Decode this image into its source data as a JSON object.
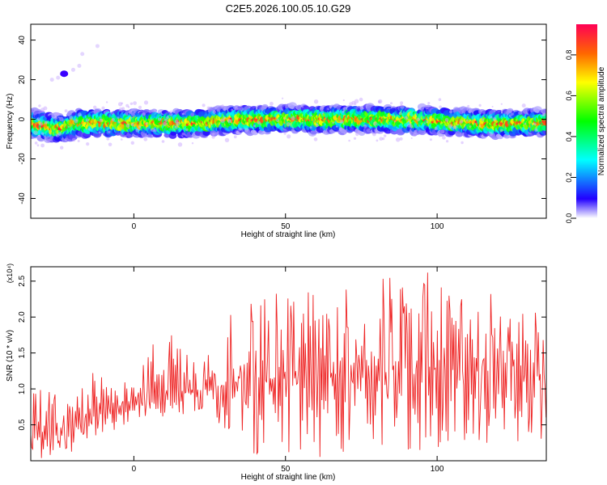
{
  "figure_title": "C2E5.2026.100.05.10.G29",
  "chart_data": [
    {
      "type": "heatmap",
      "title": "C2E5.2026.100.05.10.G29",
      "xlabel": "Height of straight line (km)",
      "ylabel": "Frequency (Hz)",
      "xlim": [
        -34,
        136
      ],
      "ylim": [
        -50,
        48
      ],
      "x_ticks": [
        0,
        50,
        100
      ],
      "y_ticks": [
        -40,
        -20,
        0,
        20,
        40
      ],
      "colorbar": {
        "label": "Normalized spectral amplitude",
        "range": [
          0.0,
          0.95
        ],
        "ticks": [
          0.0,
          0.2,
          0.4,
          0.6,
          0.8
        ],
        "colormap": [
          "#ffffff",
          "#2200ff",
          "#00ffff",
          "#00ff00",
          "#ffff00",
          "#ff6600",
          "#ff0055"
        ]
      },
      "ridge_frequency_hz": [
        {
          "x": -34,
          "y": -2
        },
        {
          "x": -25,
          "y": -5
        },
        {
          "x": -18,
          "y": -2
        },
        {
          "x": 0,
          "y": -2
        },
        {
          "x": 20,
          "y": -2
        },
        {
          "x": 35,
          "y": 0
        },
        {
          "x": 60,
          "y": 0
        },
        {
          "x": 90,
          "y": 0
        },
        {
          "x": 115,
          "y": -2
        },
        {
          "x": 136,
          "y": -2
        }
      ],
      "minor_feature": {
        "x": -23,
        "y": 23,
        "note": ""
      }
    },
    {
      "type": "line",
      "title": "",
      "xlabel": "Height of straight line (km)",
      "ylabel": "SNR (10 * v/v)",
      "y_multiplier_label": "(x10⁴)",
      "xlim": [
        -34,
        136
      ],
      "ylim": [
        0.0,
        2.7
      ],
      "x_ticks": [
        0,
        50,
        100
      ],
      "y_ticks": [
        0.5,
        1.0,
        1.5,
        2.0,
        2.5
      ],
      "y_tick_labels": [
        "0.5",
        "1.0",
        "1.5",
        "2.0",
        "2.5"
      ],
      "series": [
        {
          "name": "",
          "color": "#ee2222",
          "envelope": [
            {
              "x": -34,
              "lo": 0.0,
              "mid": 0.3,
              "hi": 0.95
            },
            {
              "x": -14,
              "lo": 0.1,
              "mid": 0.6,
              "hi": 1.25
            },
            {
              "x": 0,
              "lo": 0.6,
              "mid": 0.85,
              "hi": 1.05
            },
            {
              "x": 8,
              "lo": 0.55,
              "mid": 0.9,
              "hi": 1.85
            },
            {
              "x": 25,
              "lo": 0.7,
              "mid": 1.0,
              "hi": 1.5
            },
            {
              "x": 35,
              "lo": 0.1,
              "mid": 1.1,
              "hi": 2.3
            },
            {
              "x": 70,
              "lo": 0.0,
              "mid": 1.2,
              "hi": 2.4
            },
            {
              "x": 92,
              "lo": 0.1,
              "mid": 1.3,
              "hi": 2.68
            },
            {
              "x": 136,
              "lo": 0.3,
              "mid": 1.2,
              "hi": 2.2
            }
          ]
        }
      ]
    }
  ]
}
